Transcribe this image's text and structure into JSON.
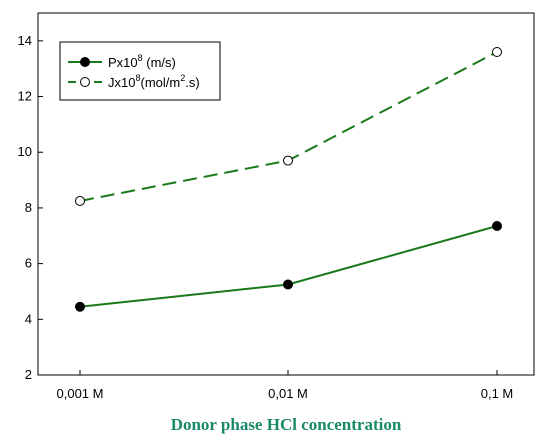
{
  "chart_data": {
    "type": "line",
    "categories": [
      "0,001 M",
      "0,01 M",
      "0,1 M"
    ],
    "series": [
      {
        "name_base": "Px10",
        "name_sup": "8",
        "name_tail": " (m/s)",
        "values": [
          4.45,
          5.25,
          7.35
        ],
        "color": "#1a7a1a",
        "marker": "filled",
        "line": "solid"
      },
      {
        "name_base": "Jx10",
        "name_sup": "8",
        "name_mid": "(mol/m",
        "name_sup2": "2",
        "name_tail": ".s)",
        "values": [
          8.25,
          9.7,
          13.6
        ],
        "color": "#1a7a1a",
        "marker": "open",
        "line": "dashed"
      }
    ],
    "xlabel": "Donor phase HCl concentration",
    "ylabel": "",
    "ylim": [
      2,
      15
    ],
    "yticks": [
      "2",
      "4",
      "6",
      "8",
      "10",
      "12",
      "14"
    ],
    "grid": false,
    "legend_position": "top-left"
  }
}
